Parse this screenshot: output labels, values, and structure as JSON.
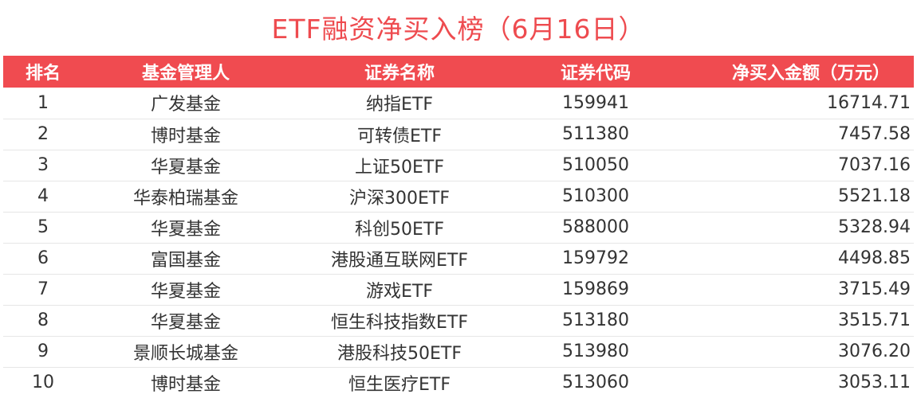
{
  "title": "ETF融资净买入榜（6月16日）",
  "colors": {
    "accent": "#f04b50",
    "title": "#ee4b4f",
    "text": "#333333"
  },
  "table": {
    "headers": {
      "rank": "排名",
      "manager": "基金管理人",
      "name": "证券名称",
      "code": "证券代码",
      "amount": "净买入金额（万元）"
    },
    "rows": [
      {
        "rank": "1",
        "manager": "广发基金",
        "name": "纳指ETF",
        "code": "159941",
        "amount": "16714.71"
      },
      {
        "rank": "2",
        "manager": "博时基金",
        "name": "可转债ETF",
        "code": "511380",
        "amount": "7457.58"
      },
      {
        "rank": "3",
        "manager": "华夏基金",
        "name": "上证50ETF",
        "code": "510050",
        "amount": "7037.16"
      },
      {
        "rank": "4",
        "manager": "华泰柏瑞基金",
        "name": "沪深300ETF",
        "code": "510300",
        "amount": "5521.18"
      },
      {
        "rank": "5",
        "manager": "华夏基金",
        "name": "科创50ETF",
        "code": "588000",
        "amount": "5328.94"
      },
      {
        "rank": "6",
        "manager": "富国基金",
        "name": "港股通互联网ETF",
        "code": "159792",
        "amount": "4498.85"
      },
      {
        "rank": "7",
        "manager": "华夏基金",
        "name": "游戏ETF",
        "code": "159869",
        "amount": "3715.49"
      },
      {
        "rank": "8",
        "manager": "华夏基金",
        "name": "恒生科技指数ETF",
        "code": "513180",
        "amount": "3515.71"
      },
      {
        "rank": "9",
        "manager": "景顺长城基金",
        "name": "港股科技50ETF",
        "code": "513980",
        "amount": "3076.20"
      },
      {
        "rank": "10",
        "manager": "博时基金",
        "name": "恒生医疗ETF",
        "code": "513060",
        "amount": "3053.11"
      }
    ]
  }
}
